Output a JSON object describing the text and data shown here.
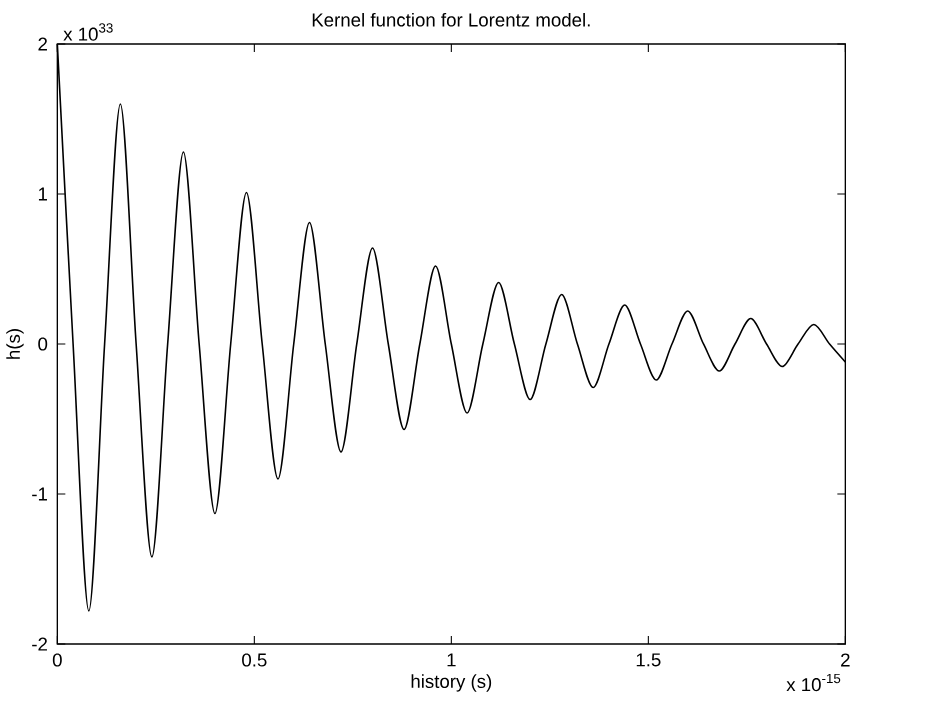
{
  "chart_data": {
    "type": "line",
    "title": "Kernel function for Lorentz model.",
    "xlabel": "history (s)",
    "ylabel": "h(s)",
    "annotations": [
      "x 10$^{33}$",
      "x 10$^{-15}$"
    ],
    "xlim": [
      0,
      2
    ],
    "ylim": [
      -2,
      2
    ],
    "xticks": [
      0,
      0.5,
      1,
      1.5,
      2
    ],
    "yticks": [
      -2,
      -1,
      0,
      1,
      2
    ],
    "grid": false,
    "series": [
      {
        "color": "#000000",
        "x": [
          0,
          0.04,
          0.08,
          0.12,
          0.16,
          0.2,
          0.24,
          0.28,
          0.32,
          0.36,
          0.4,
          0.44,
          0.48,
          0.52,
          0.56,
          0.6,
          0.64,
          0.68,
          0.72,
          0.76,
          0.8,
          0.84,
          0.88,
          0.92,
          0.96,
          1.0,
          1.04,
          1.08,
          1.12,
          1.16,
          1.2,
          1.24,
          1.28,
          1.32,
          1.36,
          1.4,
          1.44,
          1.48,
          1.52,
          1.56,
          1.6,
          1.64,
          1.68,
          1.72,
          1.76,
          1.8,
          1.84,
          1.88,
          1.92,
          1.96,
          2.0
        ],
        "values": [
          2.0,
          0,
          -1.78,
          0,
          1.6,
          0,
          -1.42,
          0,
          1.28,
          0,
          -1.13,
          0,
          1.01,
          0,
          -0.9,
          0,
          0.81,
          0,
          -0.72,
          0,
          0.64,
          0,
          -0.57,
          0,
          0.52,
          0,
          -0.46,
          0,
          0.41,
          0,
          -0.37,
          0,
          0.33,
          0,
          -0.29,
          0,
          0.26,
          0,
          -0.24,
          0,
          0.22,
          0,
          -0.18,
          0,
          0.17,
          0,
          -0.15,
          0,
          0.13,
          0,
          -0.12
        ]
      }
    ]
  }
}
